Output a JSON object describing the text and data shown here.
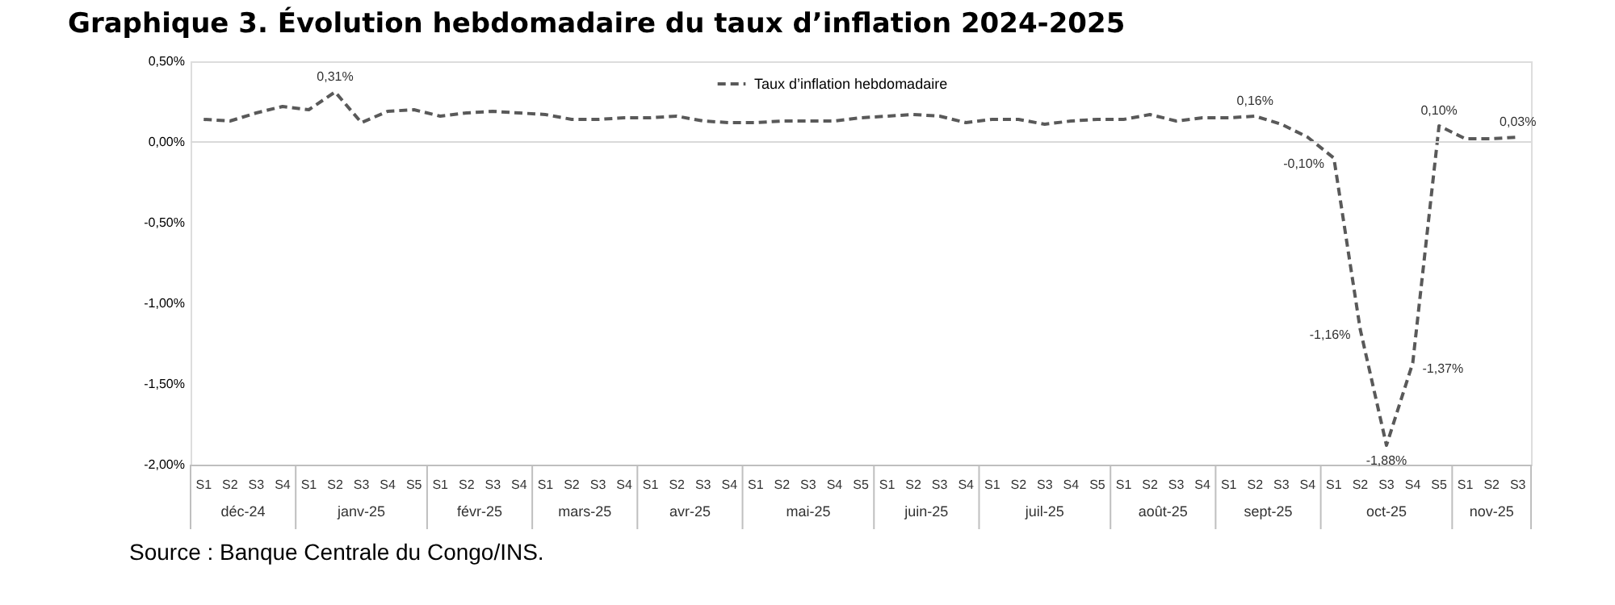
{
  "chart_data": {
    "type": "line",
    "title": "Graphique 3. Évolution hebdomadaire du taux d’inflation 2024-2025",
    "categories": [
      "S1",
      "S2",
      "S3",
      "S4",
      "S1",
      "S2",
      "S3",
      "S4",
      "S5",
      "S1",
      "S2",
      "S3",
      "S4",
      "S1",
      "S2",
      "S3",
      "S4",
      "S1",
      "S2",
      "S3",
      "S4",
      "S1",
      "S2",
      "S3",
      "S4",
      "S5",
      "S1",
      "S2",
      "S3",
      "S4",
      "S1",
      "S2",
      "S3",
      "S4",
      "S5",
      "S1",
      "S2",
      "S3",
      "S4",
      "S1",
      "S2",
      "S3",
      "S4",
      "S1",
      "S2",
      "S3",
      "S4",
      "S5",
      "S1",
      "S2",
      "S3"
    ],
    "series": [
      {
        "name": "Taux d’inflation hebdomadaire",
        "color": "#595959",
        "values": [
          0.14,
          0.13,
          0.18,
          0.22,
          0.2,
          0.31,
          0.12,
          0.19,
          0.2,
          0.16,
          0.18,
          0.19,
          0.18,
          0.17,
          0.14,
          0.14,
          0.15,
          0.15,
          0.16,
          0.13,
          0.12,
          0.12,
          0.13,
          0.13,
          0.13,
          0.15,
          0.16,
          0.17,
          0.16,
          0.12,
          0.14,
          0.14,
          0.11,
          0.13,
          0.14,
          0.14,
          0.17,
          0.13,
          0.15,
          0.15,
          0.16,
          0.11,
          0.03,
          -0.1,
          -1.16,
          -1.88,
          -1.37,
          0.1,
          0.02,
          0.02,
          0.03
        ],
        "value_labels": [
          null,
          null,
          null,
          null,
          null,
          "0,31%",
          null,
          null,
          null,
          null,
          null,
          null,
          null,
          null,
          null,
          null,
          null,
          null,
          null,
          null,
          null,
          null,
          null,
          null,
          null,
          null,
          null,
          null,
          null,
          null,
          null,
          null,
          null,
          null,
          null,
          null,
          null,
          null,
          null,
          null,
          "0,16%",
          null,
          null,
          "-0,10%",
          "-1,16%",
          "-1,88%",
          "-1,37%",
          "0,10%",
          null,
          null,
          "0,03%"
        ]
      }
    ],
    "ylim": [
      -2.0,
      0.5
    ],
    "yticks": [
      {
        "value": 0.5,
        "label": "0,50%"
      },
      {
        "value": 0,
        "label": "0,00%"
      },
      {
        "value": -0.5,
        "label": "-0,50%"
      },
      {
        "value": -1.0,
        "label": "-1,00%"
      },
      {
        "value": -1.5,
        "label": "-1,50%"
      },
      {
        "value": -2.0,
        "label": "-2,00%"
      }
    ],
    "ref_lines": [
      {
        "axis": "y",
        "value": 0,
        "color": "#d9d9d9"
      }
    ],
    "annotations": [
      "déc-24",
      "janv-25",
      "févr-25",
      "mars-25",
      "avr-25",
      "mai-25",
      "juin-25",
      "juil-25",
      "août-25",
      "sept-25",
      "oct-25",
      "nov-25",
      "Source : Banque Centrale du Congo/INS."
    ],
    "grid": false,
    "legend": "top",
    "marker": "none",
    "line_style": "dashed"
  }
}
